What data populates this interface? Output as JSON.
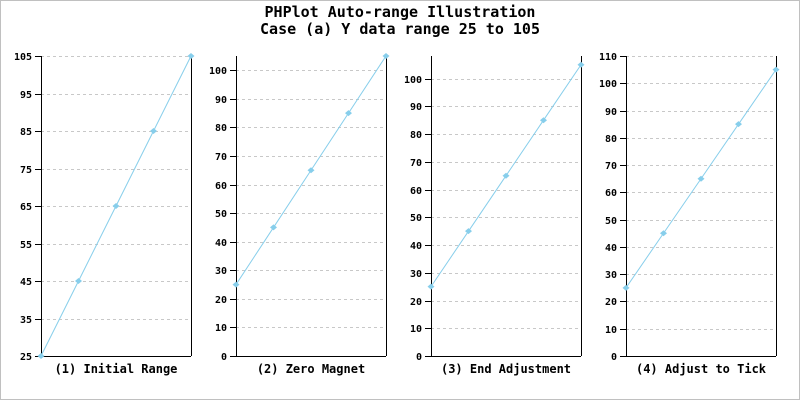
{
  "page": {
    "title_line1": "PHPlot Auto-range Illustration",
    "title_line2": "Case (a) Y data range 25 to 105"
  },
  "colors": {
    "data_line": "#87CEEB",
    "grid": "#C8C8C8",
    "axis": "#000000",
    "text": "#000000",
    "image_border": "#C0C0C0",
    "background": "#FFFFFF"
  },
  "chart_data": [
    {
      "type": "line",
      "title": "(1) Initial Range",
      "x": [
        1,
        2,
        3,
        4,
        5
      ],
      "values": [
        25,
        45,
        65,
        85,
        105
      ],
      "ylim": [
        25,
        105
      ],
      "yticks": [
        25,
        35,
        45,
        55,
        65,
        75,
        85,
        95,
        105
      ],
      "grid": "dashed-horizontal",
      "marker": "diamond",
      "legend": null,
      "xlabel": "",
      "ylabel": ""
    },
    {
      "type": "line",
      "title": "(2) Zero Magnet",
      "x": [
        1,
        2,
        3,
        4,
        5
      ],
      "values": [
        25,
        45,
        65,
        85,
        105
      ],
      "ylim": [
        0,
        105
      ],
      "yticks": [
        0,
        10,
        20,
        30,
        40,
        50,
        60,
        70,
        80,
        90,
        100
      ],
      "grid": "dashed-horizontal",
      "marker": "diamond",
      "legend": null,
      "xlabel": "",
      "ylabel": ""
    },
    {
      "type": "line",
      "title": "(3) End Adjustment",
      "x": [
        1,
        2,
        3,
        4,
        5
      ],
      "values": [
        25,
        45,
        65,
        85,
        105
      ],
      "ylim": [
        0,
        108.15
      ],
      "yticks": [
        0,
        10,
        20,
        30,
        40,
        50,
        60,
        70,
        80,
        90,
        100
      ],
      "grid": "dashed-horizontal",
      "marker": "diamond",
      "legend": null,
      "xlabel": "",
      "ylabel": ""
    },
    {
      "type": "line",
      "title": "(4) Adjust to Tick",
      "x": [
        1,
        2,
        3,
        4,
        5
      ],
      "values": [
        25,
        45,
        65,
        85,
        105
      ],
      "ylim": [
        0,
        110
      ],
      "yticks": [
        0,
        10,
        20,
        30,
        40,
        50,
        60,
        70,
        80,
        90,
        100,
        110
      ],
      "grid": "dashed-horizontal",
      "marker": "diamond",
      "legend": null,
      "xlabel": "",
      "ylabel": ""
    }
  ]
}
